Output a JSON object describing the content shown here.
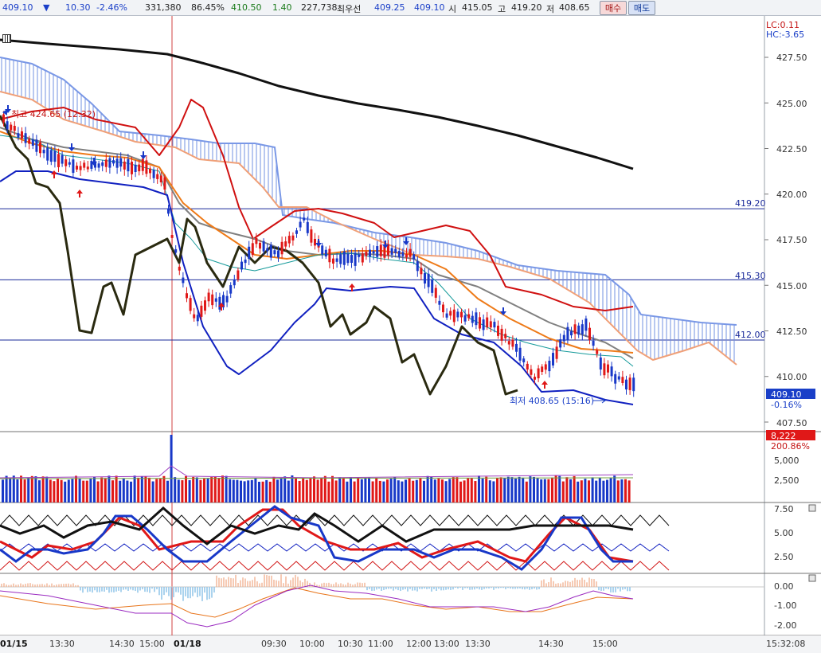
{
  "header": {
    "price": "409.10",
    "change_arrow": "▼",
    "change": "10.30",
    "change_pct": "-2.46%",
    "volume": "331,380",
    "volume_ratio": "86.45%",
    "f1": "410.50",
    "f2": "1.40",
    "f3": "227,738",
    "best_label": "최우선",
    "best_sell": "409.25",
    "best_buy": "409.10",
    "open_label": "시",
    "open": "415.05",
    "high_label": "고",
    "high": "419.20",
    "low_label": "저",
    "low": "408.65",
    "buy_button": "매수",
    "sell_button": "매도"
  },
  "chart_data": {
    "type": "candlestick",
    "lc_label": "LC:0.11",
    "hc_label": "HC:-3.65",
    "price_ticks": [
      "427.50",
      "425.00",
      "422.50",
      "420.00",
      "417.50",
      "415.00",
      "412.50",
      "410.00",
      "407.50"
    ],
    "hlines": [
      {
        "label": "419.20",
        "value": 419.2
      },
      {
        "label": "415.30",
        "value": 415.3
      },
      {
        "label": "412.00",
        "value": 412.0
      }
    ],
    "current_price_tag": "409.10",
    "current_pct_tag": "-0.16%",
    "high_annotation": "최고 424.65 (12:32)",
    "low_annotation": "최저 408.65 (15:16)",
    "volume_tag": "8,222",
    "volume_pct_tag": "200.86%",
    "volume_ticks": [
      "5,000",
      "2,500"
    ],
    "stoch_ticks": [
      "7.50",
      "5.00",
      "2.50"
    ],
    "macd_ticks": [
      "0.00",
      "-1.00",
      "-2.00"
    ],
    "time_labels": [
      "01/15",
      "13:30",
      "14:30",
      "15:00",
      "01/18",
      "09:30",
      "10:00",
      "10:30",
      "11:00",
      "12:00",
      "13:00",
      "13:30",
      "14:30",
      "15:00"
    ],
    "clock": "15:32:08"
  },
  "colors": {
    "up": "#e01818",
    "down": "#1838c8",
    "ma_black": "#111111",
    "ma_red": "#d01010",
    "ma_orange": "#ee7a18",
    "ma_salmon": "#f0a078",
    "ma_gray": "#808080",
    "ma_teal": "#159a9a",
    "lagging": "#2a2a10",
    "cloud": "#7090e0"
  }
}
